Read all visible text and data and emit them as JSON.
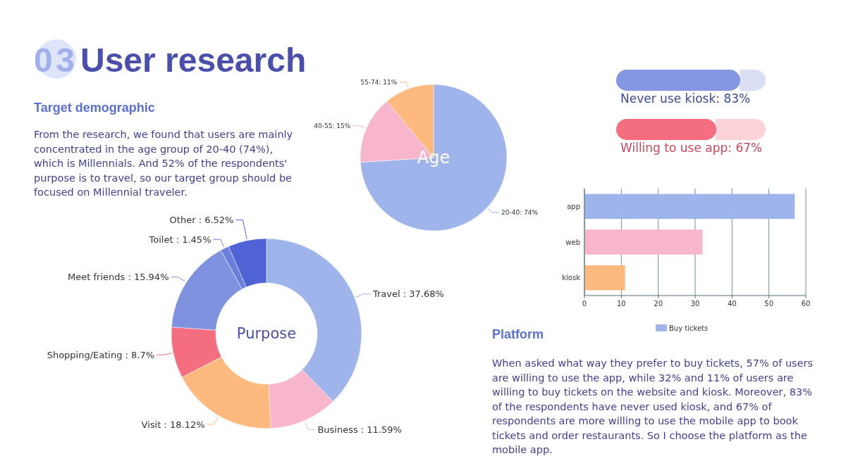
{
  "chart_data": [
    {
      "type": "other",
      "title": "User research",
      "subtitle": "Target demographic",
      "annotations": [
        "03",
        "From the research, we found that users are mainly concentrated in the age group of 20-40 (74%), which is Millennials. And 52% of the respondents' purpose is to travel, so our   target group should be focused on Millennial traveler."
      ]
    },
    {
      "type": "pie",
      "title": "Age",
      "categories": [
        "20-40: 74%",
        "40-55: 15%",
        "55-74: 11%"
      ],
      "values": [
        74,
        15,
        11
      ],
      "colors": [
        "#a0b4ec",
        "#f7b6cc",
        "#fdb97e"
      ]
    },
    {
      "type": "bar",
      "orientation": "horizontal",
      "categories": [
        null,
        null
      ],
      "values": [
        83,
        67
      ],
      "colors": [
        "#8596e2",
        "#f46e80"
      ],
      "xlim": [
        0,
        100
      ],
      "value_labels": [
        "Never use kiosk: 83%",
        "Willing to use app: 67%"
      ]
    },
    {
      "type": "bar",
      "orientation": "horizontal",
      "categories": [
        "app",
        "web",
        "kiosk"
      ],
      "series": [
        {
          "name": "Buy tickets",
          "color": "#a0b4ec",
          "colors": [
            "#a0b4ec",
            "#f7b6cc",
            "#fdb97e"
          ],
          "values": [
            57,
            32,
            11
          ]
        }
      ],
      "xlim": [
        0,
        60
      ],
      "xticks": [
        0,
        10,
        20,
        30,
        40,
        50,
        60
      ],
      "grid": "x",
      "legend": "bottom"
    },
    {
      "type": "donut",
      "title": "Purpose",
      "categories": [
        "Travel : 37.68%",
        "Business : 11.59%",
        "Visit : 18.12%",
        "Shopping/Eating : 8.7%",
        "Meet friends : 15.94%",
        "Toilet : 1.45%",
        "Other : 6.52%"
      ],
      "values": [
        37.68,
        11.59,
        18.12,
        8.7,
        15.94,
        1.45,
        6.52
      ],
      "colors": [
        "#a0b4ec",
        "#f7b6cc",
        "#fdb97e",
        "#f46e80",
        "#7f92e0",
        "#6a7fdc",
        "#4f63d6"
      ]
    },
    {
      "type": "other",
      "title": "Platform",
      "annotations": [
        "When asked what way they prefer to buy tickets, 57% of users are willing to use the app, while 32% and 11% of users are willing to buy tickets on the website and kiosk. Moreover, 83% of the respondents have never used kiosk, and 67% of respondents are more willing to use the mobile app to book tickets and order restaurants. So I choose the platform as the mobile app."
      ]
    }
  ]
}
